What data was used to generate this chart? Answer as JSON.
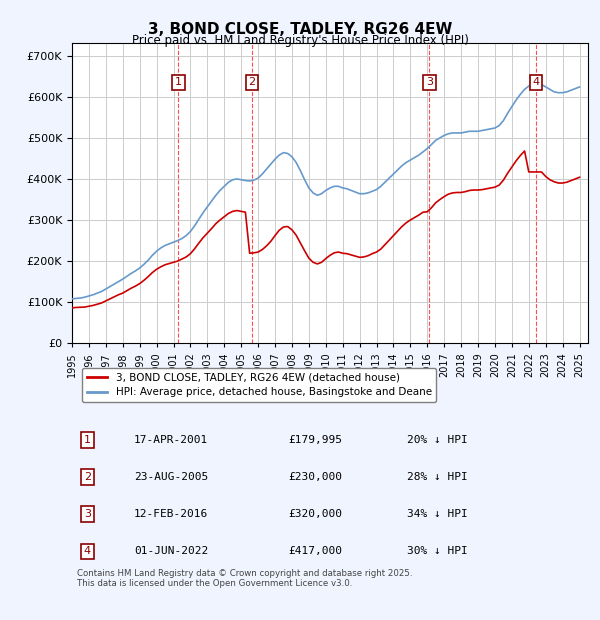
{
  "title": "3, BOND CLOSE, TADLEY, RG26 4EW",
  "subtitle": "Price paid vs. HM Land Registry's House Price Index (HPI)",
  "ylabel": "",
  "xlim_start": 1995.0,
  "xlim_end": 2025.5,
  "ylim": [
    0,
    730000
  ],
  "yticks": [
    0,
    100000,
    200000,
    300000,
    400000,
    500000,
    600000,
    700000
  ],
  "ytick_labels": [
    "£0",
    "£100K",
    "£200K",
    "£300K",
    "£400K",
    "£500K",
    "£600K",
    "£700K"
  ],
  "background_color": "#f0f4ff",
  "plot_bg_color": "#ffffff",
  "grid_color": "#cccccc",
  "red_line_color": "#cc0000",
  "blue_line_color": "#6699cc",
  "purchases": [
    {
      "num": 1,
      "year": 2001.29,
      "price": 179995,
      "date": "17-APR-2001",
      "pct": "20%",
      "label": "£179,995"
    },
    {
      "num": 2,
      "year": 2005.64,
      "price": 230000,
      "date": "23-AUG-2005",
      "pct": "28%",
      "label": "£230,000"
    },
    {
      "num": 3,
      "year": 2016.12,
      "price": 320000,
      "date": "12-FEB-2016",
      "pct": "34%",
      "label": "£320,000"
    },
    {
      "num": 4,
      "year": 2022.42,
      "price": 417000,
      "date": "01-JUN-2022",
      "pct": "30%",
      "label": "£417,000"
    }
  ],
  "hpi_x": [
    1995.0,
    1995.25,
    1995.5,
    1995.75,
    1996.0,
    1996.25,
    1996.5,
    1996.75,
    1997.0,
    1997.25,
    1997.5,
    1997.75,
    1998.0,
    1998.25,
    1998.5,
    1998.75,
    1999.0,
    1999.25,
    1999.5,
    1999.75,
    2000.0,
    2000.25,
    2000.5,
    2000.75,
    2001.0,
    2001.25,
    2001.5,
    2001.75,
    2002.0,
    2002.25,
    2002.5,
    2002.75,
    2003.0,
    2003.25,
    2003.5,
    2003.75,
    2004.0,
    2004.25,
    2004.5,
    2004.75,
    2005.0,
    2005.25,
    2005.5,
    2005.75,
    2006.0,
    2006.25,
    2006.5,
    2006.75,
    2007.0,
    2007.25,
    2007.5,
    2007.75,
    2008.0,
    2008.25,
    2008.5,
    2008.75,
    2009.0,
    2009.25,
    2009.5,
    2009.75,
    2010.0,
    2010.25,
    2010.5,
    2010.75,
    2011.0,
    2011.25,
    2011.5,
    2011.75,
    2012.0,
    2012.25,
    2012.5,
    2012.75,
    2013.0,
    2013.25,
    2013.5,
    2013.75,
    2014.0,
    2014.25,
    2014.5,
    2014.75,
    2015.0,
    2015.25,
    2015.5,
    2015.75,
    2016.0,
    2016.25,
    2016.5,
    2016.75,
    2017.0,
    2017.25,
    2017.5,
    2017.75,
    2018.0,
    2018.25,
    2018.5,
    2018.75,
    2019.0,
    2019.25,
    2019.5,
    2019.75,
    2020.0,
    2020.25,
    2020.5,
    2020.75,
    2021.0,
    2021.25,
    2021.5,
    2021.75,
    2022.0,
    2022.25,
    2022.5,
    2022.75,
    2023.0,
    2023.25,
    2023.5,
    2023.75,
    2024.0,
    2024.25,
    2024.5,
    2024.75,
    2025.0
  ],
  "hpi_y": [
    108000,
    109000,
    110000,
    112000,
    115000,
    118000,
    122000,
    126000,
    132000,
    138000,
    144000,
    150000,
    156000,
    163000,
    170000,
    176000,
    183000,
    192000,
    202000,
    214000,
    224000,
    232000,
    238000,
    242000,
    246000,
    250000,
    255000,
    262000,
    272000,
    286000,
    302000,
    318000,
    332000,
    346000,
    360000,
    372000,
    382000,
    392000,
    398000,
    400000,
    398000,
    396000,
    395000,
    397000,
    402000,
    412000,
    424000,
    436000,
    448000,
    458000,
    464000,
    462000,
    454000,
    440000,
    420000,
    398000,
    378000,
    366000,
    360000,
    364000,
    372000,
    378000,
    382000,
    382000,
    378000,
    376000,
    372000,
    368000,
    364000,
    364000,
    366000,
    370000,
    374000,
    382000,
    392000,
    402000,
    412000,
    422000,
    432000,
    440000,
    446000,
    452000,
    458000,
    466000,
    474000,
    484000,
    494000,
    500000,
    506000,
    510000,
    512000,
    512000,
    512000,
    514000,
    516000,
    516000,
    516000,
    518000,
    520000,
    522000,
    524000,
    530000,
    542000,
    560000,
    576000,
    592000,
    606000,
    618000,
    626000,
    632000,
    634000,
    630000,
    624000,
    618000,
    612000,
    610000,
    610000,
    612000,
    616000,
    620000,
    624000
  ],
  "red_x": [
    1995.0,
    1995.25,
    1995.5,
    1995.75,
    1996.0,
    1996.25,
    1996.5,
    1996.75,
    1997.0,
    1997.25,
    1997.5,
    1997.75,
    1998.0,
    1998.25,
    1998.5,
    1998.75,
    1999.0,
    1999.25,
    1999.5,
    1999.75,
    2000.0,
    2000.25,
    2000.5,
    2000.75,
    2001.0,
    2001.25,
    2001.5,
    2001.75,
    2002.0,
    2002.25,
    2002.5,
    2002.75,
    2003.0,
    2003.25,
    2003.5,
    2003.75,
    2004.0,
    2004.25,
    2004.5,
    2004.75,
    2005.0,
    2005.25,
    2005.5,
    2005.75,
    2006.0,
    2006.25,
    2006.5,
    2006.75,
    2007.0,
    2007.25,
    2007.5,
    2007.75,
    2008.0,
    2008.25,
    2008.5,
    2008.75,
    2009.0,
    2009.25,
    2009.5,
    2009.75,
    2010.0,
    2010.25,
    2010.5,
    2010.75,
    2011.0,
    2011.25,
    2011.5,
    2011.75,
    2012.0,
    2012.25,
    2012.5,
    2012.75,
    2013.0,
    2013.25,
    2013.5,
    2013.75,
    2014.0,
    2014.25,
    2014.5,
    2014.75,
    2015.0,
    2015.25,
    2015.5,
    2015.75,
    2016.0,
    2016.25,
    2016.5,
    2016.75,
    2017.0,
    2017.25,
    2017.5,
    2017.75,
    2018.0,
    2018.25,
    2018.5,
    2018.75,
    2019.0,
    2019.25,
    2019.5,
    2019.75,
    2020.0,
    2020.25,
    2020.5,
    2020.75,
    2021.0,
    2021.25,
    2021.5,
    2021.75,
    2022.0,
    2022.25,
    2022.5,
    2022.75,
    2023.0,
    2023.25,
    2023.5,
    2023.75,
    2024.0,
    2024.25,
    2024.5,
    2024.75,
    2025.0
  ],
  "red_y": [
    86000,
    87000,
    87500,
    88000,
    90000,
    92000,
    95000,
    98000,
    103000,
    108000,
    113000,
    118000,
    122000,
    128000,
    134000,
    139000,
    145000,
    153000,
    162000,
    172000,
    180000,
    186000,
    191000,
    194000,
    197000,
    200000,
    205000,
    210000,
    218000,
    230000,
    244000,
    257000,
    268000,
    279000,
    291000,
    300000,
    308000,
    316000,
    321000,
    323000,
    321000,
    319000,
    219000,
    220000,
    222000,
    228000,
    237000,
    248000,
    262000,
    275000,
    283000,
    284000,
    276000,
    263000,
    244000,
    225000,
    207000,
    197000,
    193000,
    197000,
    206000,
    214000,
    220000,
    222000,
    219000,
    218000,
    215000,
    212000,
    209000,
    210000,
    213000,
    218000,
    222000,
    229000,
    240000,
    251000,
    262000,
    273000,
    284000,
    293000,
    300000,
    306000,
    312000,
    319000,
    320000,
    330000,
    342000,
    350000,
    357000,
    363000,
    366000,
    367000,
    367000,
    369000,
    372000,
    373000,
    373000,
    374000,
    376000,
    378000,
    380000,
    385000,
    397000,
    414000,
    429000,
    444000,
    457000,
    468000,
    417000,
    417000,
    417000,
    417000,
    406000,
    398000,
    393000,
    390000,
    390000,
    392000,
    396000,
    400000,
    404000
  ],
  "xtick_years": [
    1995,
    1996,
    1997,
    1998,
    1999,
    2000,
    2001,
    2002,
    2003,
    2004,
    2005,
    2006,
    2007,
    2008,
    2009,
    2010,
    2011,
    2012,
    2013,
    2014,
    2015,
    2016,
    2017,
    2018,
    2019,
    2020,
    2021,
    2022,
    2023,
    2024,
    2025
  ],
  "legend_red": "3, BOND CLOSE, TADLEY, RG26 4EW (detached house)",
  "legend_blue": "HPI: Average price, detached house, Basingstoke and Deane",
  "table_rows": [
    {
      "num": 1,
      "date": "17-APR-2001",
      "price": "£179,995",
      "pct": "20% ↓ HPI"
    },
    {
      "num": 2,
      "date": "23-AUG-2005",
      "price": "£230,000",
      "pct": "28% ↓ HPI"
    },
    {
      "num": 3,
      "date": "12-FEB-2016",
      "price": "£320,000",
      "pct": "34% ↓ HPI"
    },
    {
      "num": 4,
      "date": "01-JUN-2022",
      "price": "£417,000",
      "pct": "30% ↓ HPI"
    }
  ],
  "footer": "Contains HM Land Registry data © Crown copyright and database right 2025.\nThis data is licensed under the Open Government Licence v3.0."
}
